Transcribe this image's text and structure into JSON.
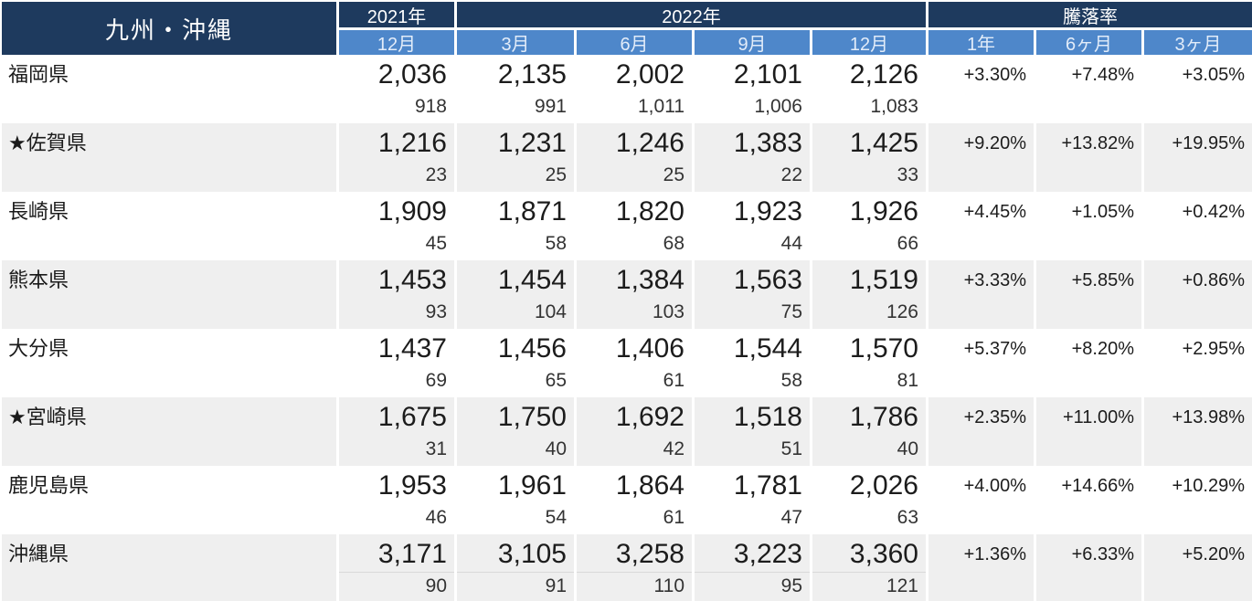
{
  "table": {
    "title": "九州・沖縄",
    "groups": {
      "y2021": "2021年",
      "y2022": "2022年",
      "rate": "騰落率"
    },
    "sub_headers": [
      "12月",
      "3月",
      "6月",
      "9月",
      "12月",
      "1年",
      "6ヶ月",
      "3ヶ月"
    ],
    "rows": [
      {
        "name_display": "福岡県",
        "prefecture": "福岡県",
        "starred": false,
        "values": [
          "2,036",
          "2,135",
          "2,002",
          "2,101",
          "2,126"
        ],
        "sub_values": [
          "918",
          "991",
          "1,011",
          "1,006",
          "1,083"
        ],
        "changes": [
          "+3.30%",
          "+7.48%",
          "+3.05%"
        ]
      },
      {
        "name_display": "★佐賀県",
        "prefecture": "佐賀県",
        "starred": true,
        "values": [
          "1,216",
          "1,231",
          "1,246",
          "1,383",
          "1,425"
        ],
        "sub_values": [
          "23",
          "25",
          "25",
          "22",
          "33"
        ],
        "changes": [
          "+9.20%",
          "+13.82%",
          "+19.95%"
        ]
      },
      {
        "name_display": "長崎県",
        "prefecture": "長崎県",
        "starred": false,
        "values": [
          "1,909",
          "1,871",
          "1,820",
          "1,923",
          "1,926"
        ],
        "sub_values": [
          "45",
          "58",
          "68",
          "44",
          "66"
        ],
        "changes": [
          "+4.45%",
          "+1.05%",
          "+0.42%"
        ]
      },
      {
        "name_display": "熊本県",
        "prefecture": "熊本県",
        "starred": false,
        "values": [
          "1,453",
          "1,454",
          "1,384",
          "1,563",
          "1,519"
        ],
        "sub_values": [
          "93",
          "104",
          "103",
          "75",
          "126"
        ],
        "changes": [
          "+3.33%",
          "+5.85%",
          "+0.86%"
        ]
      },
      {
        "name_display": "大分県",
        "prefecture": "大分県",
        "starred": false,
        "values": [
          "1,437",
          "1,456",
          "1,406",
          "1,544",
          "1,570"
        ],
        "sub_values": [
          "69",
          "65",
          "61",
          "58",
          "81"
        ],
        "changes": [
          "+5.37%",
          "+8.20%",
          "+2.95%"
        ]
      },
      {
        "name_display": "★宮崎県",
        "prefecture": "宮崎県",
        "starred": true,
        "values": [
          "1,675",
          "1,750",
          "1,692",
          "1,518",
          "1,786"
        ],
        "sub_values": [
          "31",
          "40",
          "42",
          "51",
          "40"
        ],
        "changes": [
          "+2.35%",
          "+11.00%",
          "+13.98%"
        ]
      },
      {
        "name_display": "鹿児島県",
        "prefecture": "鹿児島県",
        "starred": false,
        "values": [
          "1,953",
          "1,961",
          "1,864",
          "1,781",
          "2,026"
        ],
        "sub_values": [
          "46",
          "54",
          "61",
          "47",
          "63"
        ],
        "changes": [
          "+4.00%",
          "+14.66%",
          "+10.29%"
        ]
      },
      {
        "name_display": "沖縄県",
        "prefecture": "沖縄県",
        "starred": false,
        "values": [
          "3,171",
          "3,105",
          "3,258",
          "3,223",
          "3,360"
        ],
        "sub_values": [
          "90",
          "91",
          "110",
          "95",
          "121"
        ],
        "changes": [
          "+1.36%",
          "+6.33%",
          "+5.20%"
        ]
      }
    ],
    "colors": {
      "header_navy": "#1e3a5e",
      "subheader_blue": "#4e87ca",
      "row_alt_gray": "#efefef",
      "text": "#1a1a1a"
    }
  },
  "chart_data": {
    "type": "table",
    "title": "九州・沖縄",
    "column_groups": [
      "2021年",
      "2022年",
      "騰落率"
    ],
    "columns": [
      "2021年12月",
      "2022年3月",
      "2022年6月",
      "2022年9月",
      "2022年12月",
      "騰落率1年",
      "騰落率6ヶ月",
      "騰落率3ヶ月"
    ],
    "rows": [
      {
        "prefecture": "福岡県",
        "starred": false,
        "values": [
          2036,
          2135,
          2002,
          2101,
          2126
        ],
        "counts": [
          918,
          991,
          1011,
          1006,
          1083
        ],
        "changes_pct": [
          3.3,
          7.48,
          3.05
        ]
      },
      {
        "prefecture": "佐賀県",
        "starred": true,
        "values": [
          1216,
          1231,
          1246,
          1383,
          1425
        ],
        "counts": [
          23,
          25,
          25,
          22,
          33
        ],
        "changes_pct": [
          9.2,
          13.82,
          19.95
        ]
      },
      {
        "prefecture": "長崎県",
        "starred": false,
        "values": [
          1909,
          1871,
          1820,
          1923,
          1926
        ],
        "counts": [
          45,
          58,
          68,
          44,
          66
        ],
        "changes_pct": [
          4.45,
          1.05,
          0.42
        ]
      },
      {
        "prefecture": "熊本県",
        "starred": false,
        "values": [
          1453,
          1454,
          1384,
          1563,
          1519
        ],
        "counts": [
          93,
          104,
          103,
          75,
          126
        ],
        "changes_pct": [
          3.33,
          5.85,
          0.86
        ]
      },
      {
        "prefecture": "大分県",
        "starred": false,
        "values": [
          1437,
          1456,
          1406,
          1544,
          1570
        ],
        "counts": [
          69,
          65,
          61,
          58,
          81
        ],
        "changes_pct": [
          5.37,
          8.2,
          2.95
        ]
      },
      {
        "prefecture": "宮崎県",
        "starred": true,
        "values": [
          1675,
          1750,
          1692,
          1518,
          1786
        ],
        "counts": [
          31,
          40,
          42,
          51,
          40
        ],
        "changes_pct": [
          2.35,
          11.0,
          13.98
        ]
      },
      {
        "prefecture": "鹿児島県",
        "starred": false,
        "values": [
          1953,
          1961,
          1864,
          1781,
          2026
        ],
        "counts": [
          46,
          54,
          61,
          47,
          63
        ],
        "changes_pct": [
          4.0,
          14.66,
          10.29
        ]
      },
      {
        "prefecture": "沖縄県",
        "starred": false,
        "values": [
          3171,
          3105,
          3258,
          3223,
          3360
        ],
        "counts": [
          90,
          91,
          110,
          95,
          121
        ],
        "changes_pct": [
          1.36,
          6.33,
          5.2
        ]
      }
    ]
  }
}
